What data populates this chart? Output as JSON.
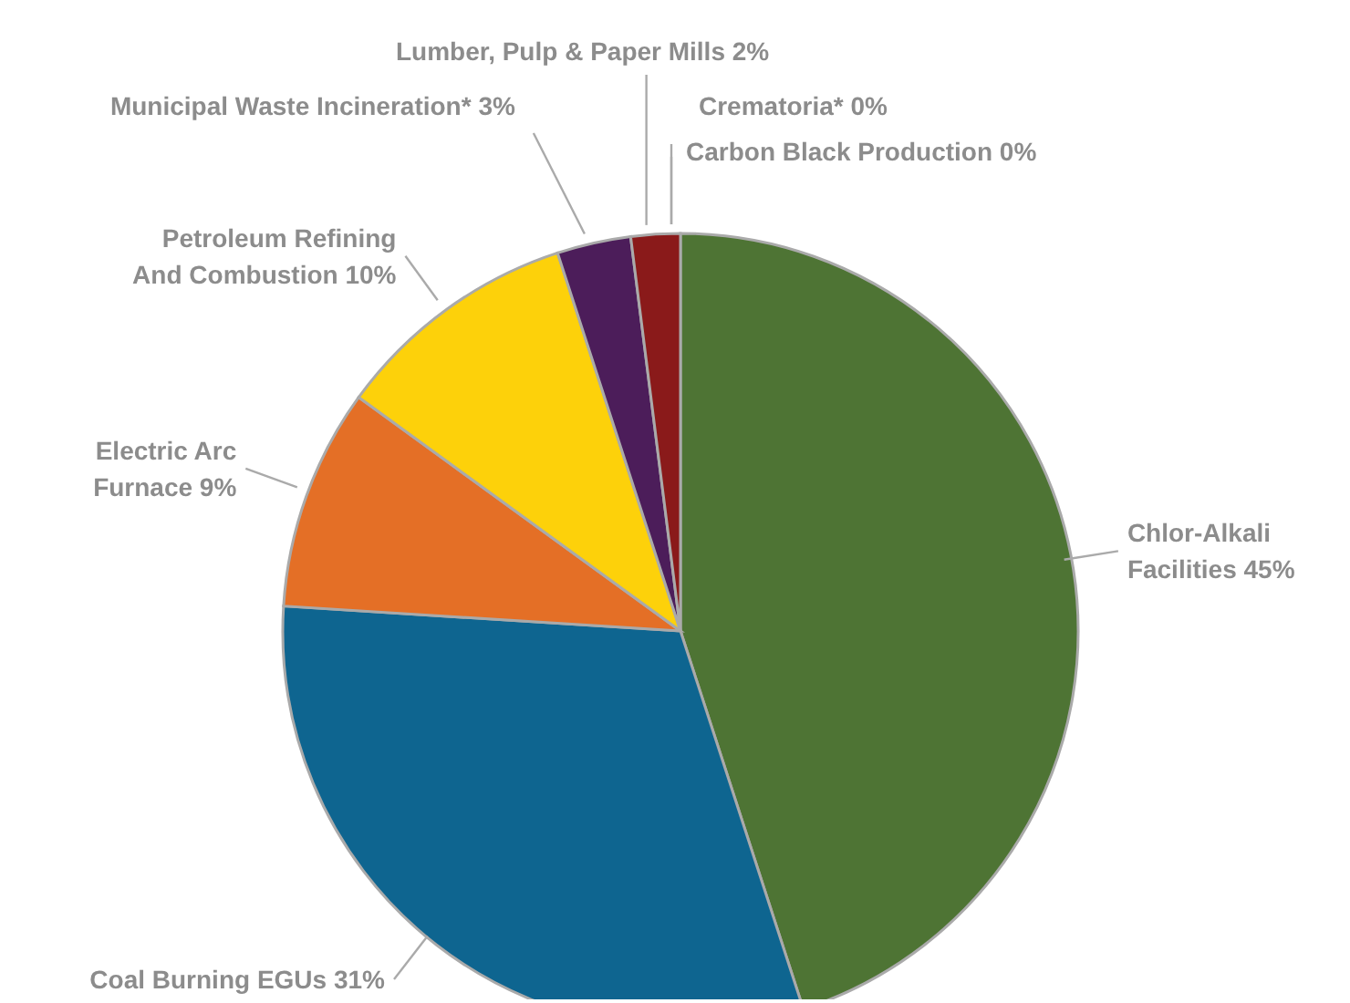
{
  "chart_data": {
    "type": "pie",
    "categories": [
      "Chlor-Alkali Facilities",
      "Coal Burning EGUs",
      "Electric Arc Furnace",
      "Petroleum Refining And Combustion",
      "Municipal Waste Incineration*",
      "Lumber, Pulp & Paper Mills",
      "Crematoria*",
      "Carbon Black Production"
    ],
    "values": [
      45,
      31,
      9,
      10,
      3,
      2,
      0,
      0
    ],
    "colors": [
      "#4e7434",
      "#0e6590",
      "#e46f26",
      "#fdd10a",
      "#4c1d5a",
      "#8a1a1a",
      "#d4e157",
      "#b5c94a"
    ],
    "value_labels": [
      "45%",
      "31%",
      "9%",
      "10%",
      "3%",
      "2%",
      "0%",
      "0%"
    ]
  }
}
